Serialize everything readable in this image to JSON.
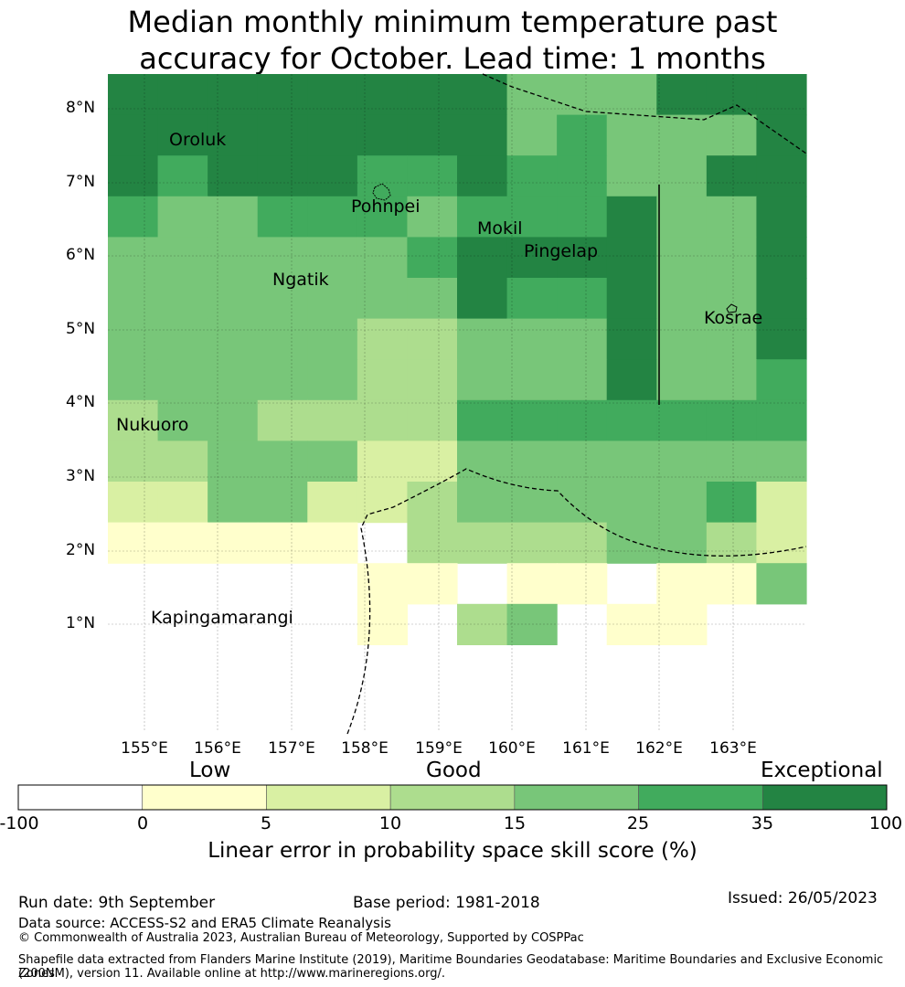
{
  "title_line1": "Median monthly minimum temperature past",
  "title_line2": "accuracy for October. Lead time: 1 months",
  "map": {
    "lat_labels": [
      "8°N",
      "7°N",
      "6°N",
      "5°N",
      "4°N",
      "3°N",
      "2°N",
      "1°N"
    ],
    "lon_labels": [
      "155°E",
      "156°E",
      "157°E",
      "158°E",
      "159°E",
      "160°E",
      "161°E",
      "162°E",
      "163°E"
    ],
    "places": {
      "oroluk": "Oroluk",
      "pohnpei": "Pohnpei",
      "mokil": "Mokil",
      "pingelap": "Pingelap",
      "ngatik": "Ngatik",
      "kosrae": "Kosrae",
      "nukuoro": "Nukuoro",
      "kapingamarangi": "Kapingamarangi"
    },
    "grid_extent": {
      "lon_min": 154.5,
      "lat_top": 8.5,
      "cell_deg": 0.55
    },
    "grid_values": [
      "66666666444666",
      "66666666454446",
      "65666556554466",
      "54455545556446",
      "44444456666446",
      "44444446556446",
      "44444334446446",
      "44444334446445",
      "34433335555555",
      "33444224444444",
      "22442234444452",
      "11111033334432",
      "00000110110114",
      "00000103401100",
      "00000000000000",
      "00000000000000",
      "00000000000000",
      "00000000000000",
      "00000000000000",
      "00000000000000"
    ],
    "grid_values_note_legend": "0=no data,1=0-5,2=5-10,3=10-15,4=15-25,5=25-35,6=35-100"
  },
  "colorbar": {
    "categories": [
      "Low",
      "Good",
      "Exceptional"
    ],
    "ticks": [
      "-100",
      "0",
      "5",
      "10",
      "15",
      "25",
      "35",
      "100"
    ],
    "colors": [
      "#ffffff",
      "#ffffcc",
      "#d9f0a3",
      "#addd8e",
      "#78c679",
      "#41ab5d",
      "#238443"
    ],
    "label": "Linear error in probability space skill score (%)"
  },
  "footer": {
    "run_date": "Run date: 9th September",
    "base_period": "Base period: 1981-2018",
    "issued": "Issued: 26/05/2023",
    "data_source": "Data source: ACCESS-S2 and ERA5 Climate Reanalysis",
    "copyright": "© Commonwealth of Australia 2023, Australian Bureau of Meteorology, Supported by COSPPac",
    "shapefile_1": "Shapefile data extracted from Flanders Marine Institute (2019), Maritime Boundaries Geodatabase: Maritime Boundaries and Exclusive Economic Zones",
    "shapefile_2": "(200NM), version 11. Available online at http://www.marineregions.org/."
  }
}
